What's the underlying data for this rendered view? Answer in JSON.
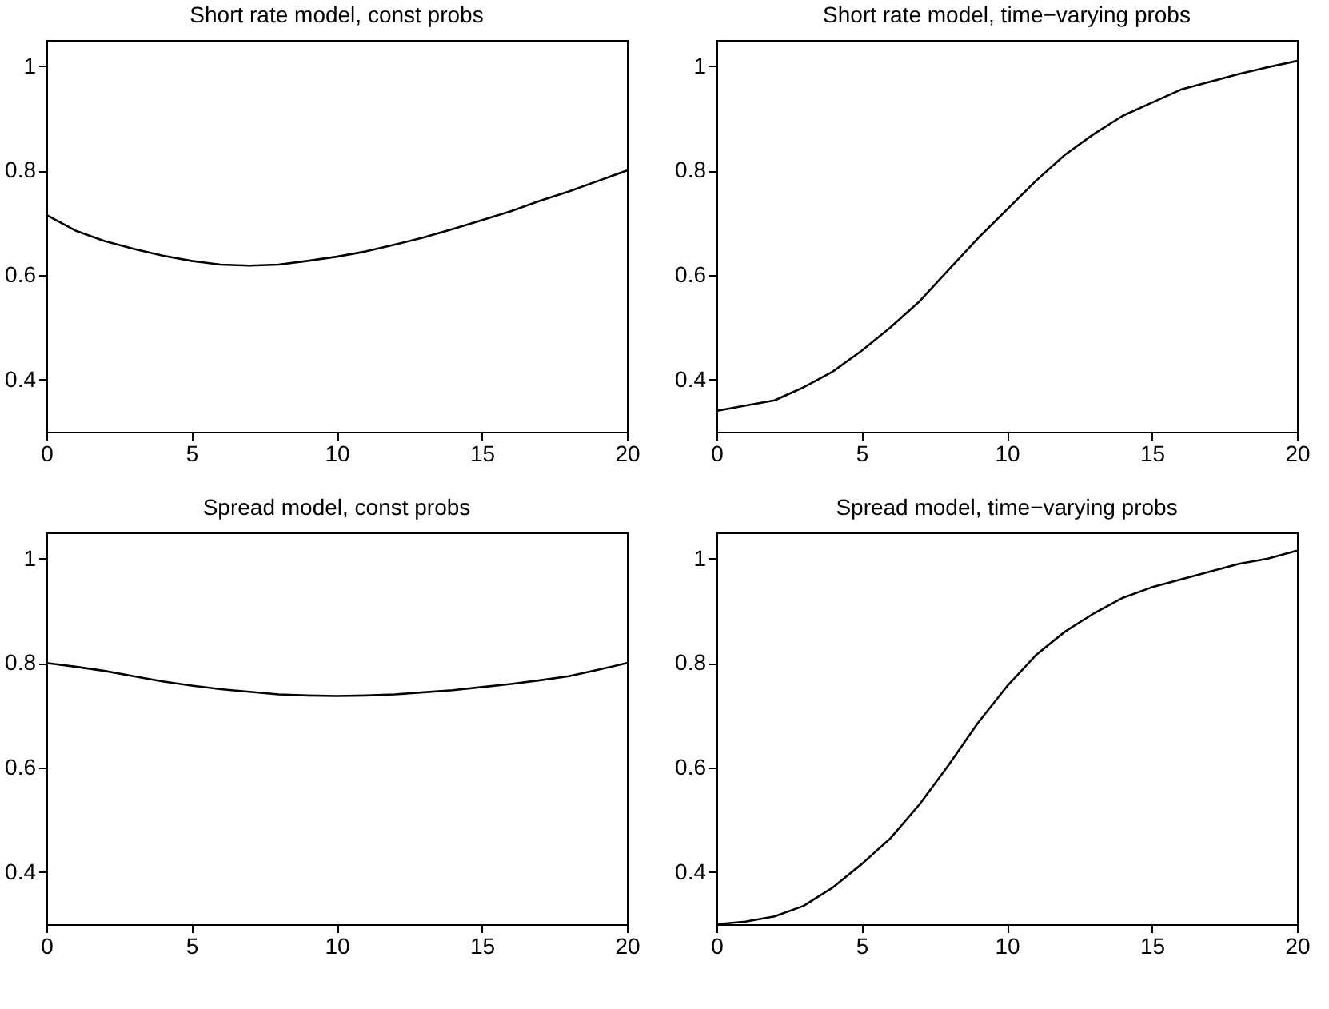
{
  "chart_data": [
    {
      "type": "line",
      "title": "Short rate model, const probs",
      "x": [
        0,
        1,
        2,
        3,
        4,
        5,
        6,
        7,
        8,
        9,
        10,
        11,
        12,
        13,
        14,
        15,
        16,
        17,
        18,
        19,
        20
      ],
      "series": [
        {
          "color": "#000000",
          "values": [
            0.715,
            0.685,
            0.665,
            0.65,
            0.637,
            0.627,
            0.62,
            0.618,
            0.62,
            0.627,
            0.635,
            0.645,
            0.658,
            0.672,
            0.688,
            0.705,
            0.722,
            0.742,
            0.76,
            0.78,
            0.8
          ]
        }
      ],
      "xlim": [
        0,
        20
      ],
      "xticks": [
        0,
        5,
        10,
        15,
        20
      ],
      "ylim": [
        0.3,
        1.05
      ],
      "yticks": [
        0.4,
        0.6,
        0.8,
        1
      ],
      "grid": false,
      "line_style": "solid"
    },
    {
      "type": "line",
      "title": "Short rate model, time−varying probs",
      "x": [
        0,
        1,
        2,
        3,
        4,
        5,
        6,
        7,
        8,
        9,
        10,
        11,
        12,
        13,
        14,
        15,
        16,
        17,
        18,
        19,
        20
      ],
      "series": [
        {
          "color": "#000000",
          "values": [
            0.34,
            0.35,
            0.36,
            0.385,
            0.415,
            0.455,
            0.5,
            0.55,
            0.61,
            0.67,
            0.725,
            0.78,
            0.83,
            0.87,
            0.905,
            0.93,
            0.955,
            0.97,
            0.985,
            0.998,
            1.01
          ]
        }
      ],
      "xlim": [
        0,
        20
      ],
      "xticks": [
        0,
        5,
        10,
        15,
        20
      ],
      "ylim": [
        0.3,
        1.05
      ],
      "yticks": [
        0.4,
        0.6,
        0.8,
        1
      ],
      "grid": false,
      "line_style": "solid"
    },
    {
      "type": "line",
      "title": "Spread model, const probs",
      "x": [
        0,
        1,
        2,
        3,
        4,
        5,
        6,
        7,
        8,
        9,
        10,
        11,
        12,
        13,
        14,
        15,
        16,
        17,
        18,
        19,
        20
      ],
      "series": [
        {
          "color": "#000000",
          "values": [
            0.8,
            0.793,
            0.785,
            0.775,
            0.765,
            0.757,
            0.75,
            0.745,
            0.74,
            0.738,
            0.737,
            0.738,
            0.74,
            0.744,
            0.748,
            0.754,
            0.76,
            0.767,
            0.775,
            0.787,
            0.8
          ]
        }
      ],
      "xlim": [
        0,
        20
      ],
      "xticks": [
        0,
        5,
        10,
        15,
        20
      ],
      "ylim": [
        0.3,
        1.05
      ],
      "yticks": [
        0.4,
        0.6,
        0.8,
        1
      ],
      "grid": false,
      "line_style": "solid"
    },
    {
      "type": "line",
      "title": "Spread model, time−varying probs",
      "x": [
        0,
        1,
        2,
        3,
        4,
        5,
        6,
        7,
        8,
        9,
        10,
        11,
        12,
        13,
        14,
        15,
        16,
        17,
        18,
        19,
        20
      ],
      "series": [
        {
          "color": "#000000",
          "values": [
            0.3,
            0.305,
            0.315,
            0.335,
            0.37,
            0.415,
            0.465,
            0.53,
            0.605,
            0.685,
            0.755,
            0.815,
            0.86,
            0.895,
            0.925,
            0.945,
            0.96,
            0.975,
            0.99,
            1.0,
            1.015
          ]
        }
      ],
      "xlim": [
        0,
        20
      ],
      "xticks": [
        0,
        5,
        10,
        15,
        20
      ],
      "ylim": [
        0.3,
        1.05
      ],
      "yticks": [
        0.4,
        0.6,
        0.8,
        1
      ],
      "grid": false,
      "line_style": "solid"
    }
  ]
}
